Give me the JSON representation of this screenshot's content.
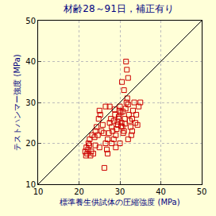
{
  "chart_data": {
    "type": "scatter",
    "title": "材齢28～91日，補正有り",
    "x_label": "標準養生供試体の圧縮強度 (MPa)",
    "y_label": "テストハンマー強度 (MPa)",
    "xlim": [
      10,
      50
    ],
    "ylim": [
      10,
      50
    ],
    "xticks": [
      10,
      20,
      30,
      40,
      50
    ],
    "yticks": [
      10,
      20,
      30,
      40,
      50
    ],
    "grid": true,
    "series": [
      {
        "type": "scatter",
        "marker": "square-open",
        "color": "#cc0000",
        "x": [
          21.5,
          21.8,
          22,
          22.2,
          22.5,
          21.7,
          22.8,
          23,
          23.5,
          22.3,
          22.6,
          23.2,
          23.8,
          24,
          24.3,
          24.6,
          24.8,
          25,
          25.2,
          25.5,
          25.8,
          26,
          26.2,
          26.5,
          26.8,
          27,
          27.3,
          27.5,
          27.8,
          28,
          28.2,
          28.5,
          28.8,
          29,
          29.2,
          29.5,
          29.7,
          29.9,
          30,
          30.2,
          30.4,
          30.6,
          30.8,
          31,
          31.2,
          31.4,
          31.6,
          31.8,
          32,
          32.2,
          32.4,
          32.6,
          32.8,
          33,
          33.2,
          33.5,
          33.8,
          34,
          34.3,
          34.6,
          35,
          31.5,
          31.7,
          32,
          31,
          30.5,
          29,
          28,
          27,
          25,
          24,
          26.5,
          27.5,
          28.5,
          30,
          32,
          33,
          29.8,
          30.3,
          31.2,
          30.7,
          29.4,
          28.7
        ],
        "values": [
          18,
          19,
          17.5,
          18.5,
          19.5,
          17,
          17,
          18,
          17.5,
          20,
          21,
          22,
          21.5,
          23,
          24,
          22,
          26,
          28,
          27,
          23,
          24.5,
          22.5,
          14,
          20,
          18.5,
          21,
          22.5,
          25,
          26,
          24,
          23,
          25.5,
          27,
          22,
          23.5,
          24.5,
          26.5,
          28,
          29,
          27.5,
          25,
          24,
          22.5,
          23,
          26,
          28.5,
          30,
          31,
          29.5,
          27,
          25.5,
          24,
          22,
          26,
          28,
          30,
          25,
          27,
          24.5,
          29,
          30,
          40,
          38,
          36,
          33,
          35,
          19,
          20,
          17.5,
          19,
          19.5,
          29,
          29,
          21,
          20,
          21,
          23,
          26,
          24.2,
          24.8,
          27.8,
          25.3,
          28.3
        ]
      },
      {
        "type": "line",
        "line_style": "solid",
        "color": "#000000",
        "x": [
          10,
          50
        ],
        "values": [
          10,
          50
        ]
      }
    ]
  }
}
